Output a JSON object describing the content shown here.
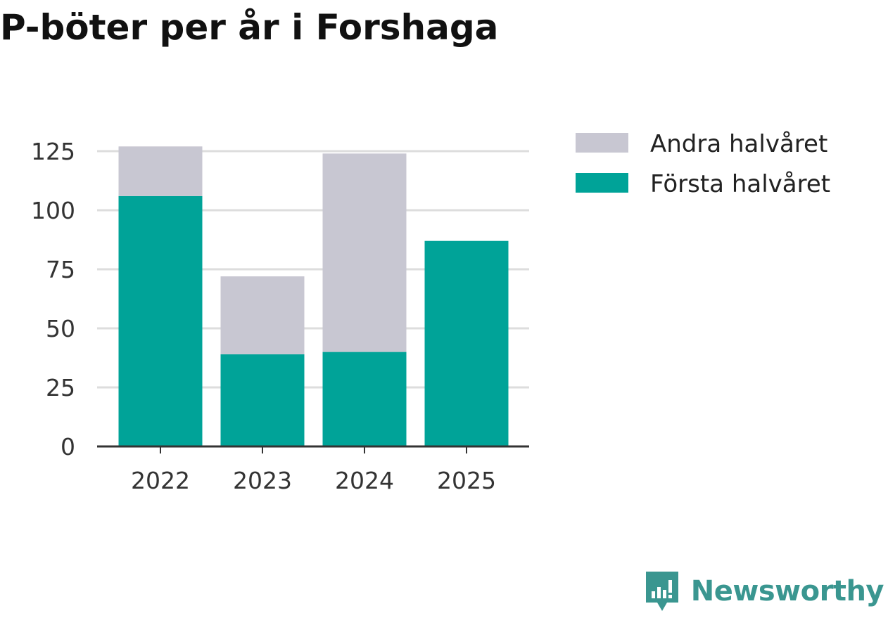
{
  "colors": {
    "forsta": "#00a398",
    "andra": "#c8c7d2",
    "grid": "#dddddd",
    "axis": "#333333",
    "brand": "#3a9690"
  },
  "brand": {
    "name": "Newsworthy",
    "icon": "newsworthy-logo-icon"
  },
  "chart_data": {
    "type": "bar",
    "stacked": true,
    "title": "P-böter per år i Forshaga",
    "categories": [
      "2022",
      "2023",
      "2024",
      "2025"
    ],
    "series": [
      {
        "name": "Första halvåret",
        "values": [
          106,
          39,
          40,
          87
        ]
      },
      {
        "name": "Andra halvåret",
        "values": [
          21,
          33,
          84,
          0
        ]
      }
    ],
    "yticks": [
      "0",
      "25",
      "50",
      "75",
      "100",
      "125"
    ],
    "ylim": [
      0,
      125
    ],
    "grid": true,
    "legend": "top-right",
    "legend_order": [
      "Andra halvåret",
      "Första halvåret"
    ]
  }
}
